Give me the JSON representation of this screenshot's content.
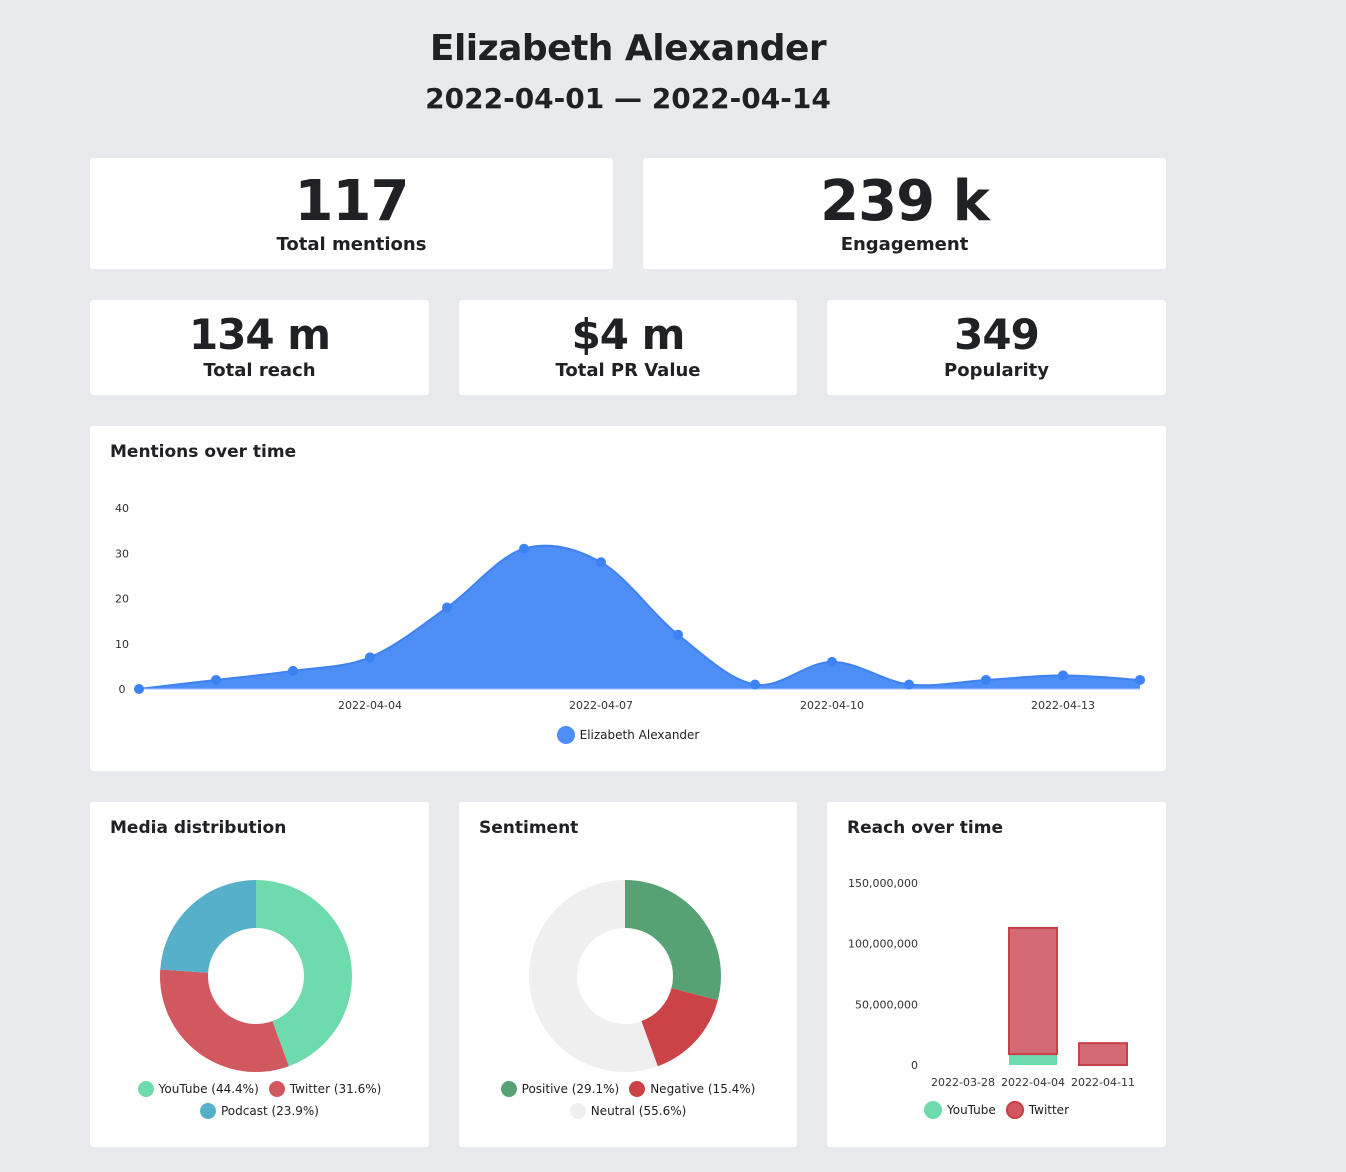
{
  "header": {
    "title": "Elizabeth Alexander",
    "date_range": "2022-04-01 — 2022-04-14"
  },
  "kpis": {
    "total_mentions": {
      "value": "117",
      "label": "Total mentions"
    },
    "engagement": {
      "value": "239 k",
      "label": "Engagement"
    },
    "total_reach": {
      "value": "134 m",
      "label": "Total reach"
    },
    "total_pr_value": {
      "value": "$4 m",
      "label": "Total PR Value"
    },
    "popularity": {
      "value": "349",
      "label": "Popularity"
    }
  },
  "mentions_card": {
    "title": "Mentions over time",
    "legend_label": "Elizabeth Alexander",
    "color": "#4e8ff7"
  },
  "media_card": {
    "title": "Media distribution",
    "legend": [
      {
        "label": "YouTube (44.4%)",
        "color": "#6ddbab"
      },
      {
        "label": "Twitter (31.6%)",
        "color": "#d2585f"
      },
      {
        "label": "Podcast (23.9%)",
        "color": "#56b0c9"
      }
    ]
  },
  "sentiment_card": {
    "title": "Sentiment",
    "legend": [
      {
        "label": "Positive (29.1%)",
        "color": "#56a274"
      },
      {
        "label": "Negative (15.4%)",
        "color": "#cb4247"
      },
      {
        "label": "Neutral (55.6%)",
        "color": "#efefef"
      }
    ]
  },
  "reach_card": {
    "title": "Reach over time",
    "legend": [
      {
        "label": "YouTube",
        "color": "#6ddbab"
      },
      {
        "label": "Twitter",
        "color": "#d2585f"
      }
    ]
  },
  "chart_data": [
    {
      "type": "area",
      "title": "Mentions over time",
      "x": [
        "2022-04-01",
        "2022-04-02",
        "2022-04-03",
        "2022-04-04",
        "2022-04-05",
        "2022-04-06",
        "2022-04-07",
        "2022-04-08",
        "2022-04-09",
        "2022-04-10",
        "2022-04-11",
        "2022-04-12",
        "2022-04-13",
        "2022-04-14"
      ],
      "series": [
        {
          "name": "Elizabeth Alexander",
          "values": [
            0,
            2,
            4,
            7,
            18,
            31,
            28,
            12,
            1,
            6,
            1,
            2,
            3,
            2
          ]
        }
      ],
      "ylim": [
        0,
        40
      ],
      "yticks": [
        0,
        10,
        20,
        30,
        40
      ],
      "xtick_labels": [
        "2022-04-04",
        "2022-04-07",
        "2022-04-10",
        "2022-04-13"
      ],
      "legend": "bottom",
      "grid": false
    },
    {
      "type": "pie",
      "title": "Media distribution",
      "donut": true,
      "categories": [
        "YouTube",
        "Twitter",
        "Podcast"
      ],
      "values": [
        44.4,
        31.6,
        23.9
      ]
    },
    {
      "type": "pie",
      "title": "Sentiment",
      "donut": true,
      "categories": [
        "Positive",
        "Negative",
        "Neutral"
      ],
      "values": [
        29.1,
        15.4,
        55.6
      ]
    },
    {
      "type": "bar",
      "stacked": true,
      "title": "Reach over time",
      "categories": [
        "2022-03-28",
        "2022-04-04",
        "2022-04-11"
      ],
      "series": [
        {
          "name": "YouTube",
          "values": [
            0,
            9000000,
            0
          ]
        },
        {
          "name": "Twitter",
          "values": [
            0,
            104000000,
            18000000
          ]
        }
      ],
      "ylim": [
        0,
        150000000
      ],
      "yticks": [
        "0",
        "50,000,000",
        "100,000,000",
        "150,000,000"
      ],
      "legend": "bottom",
      "grid": false
    }
  ]
}
